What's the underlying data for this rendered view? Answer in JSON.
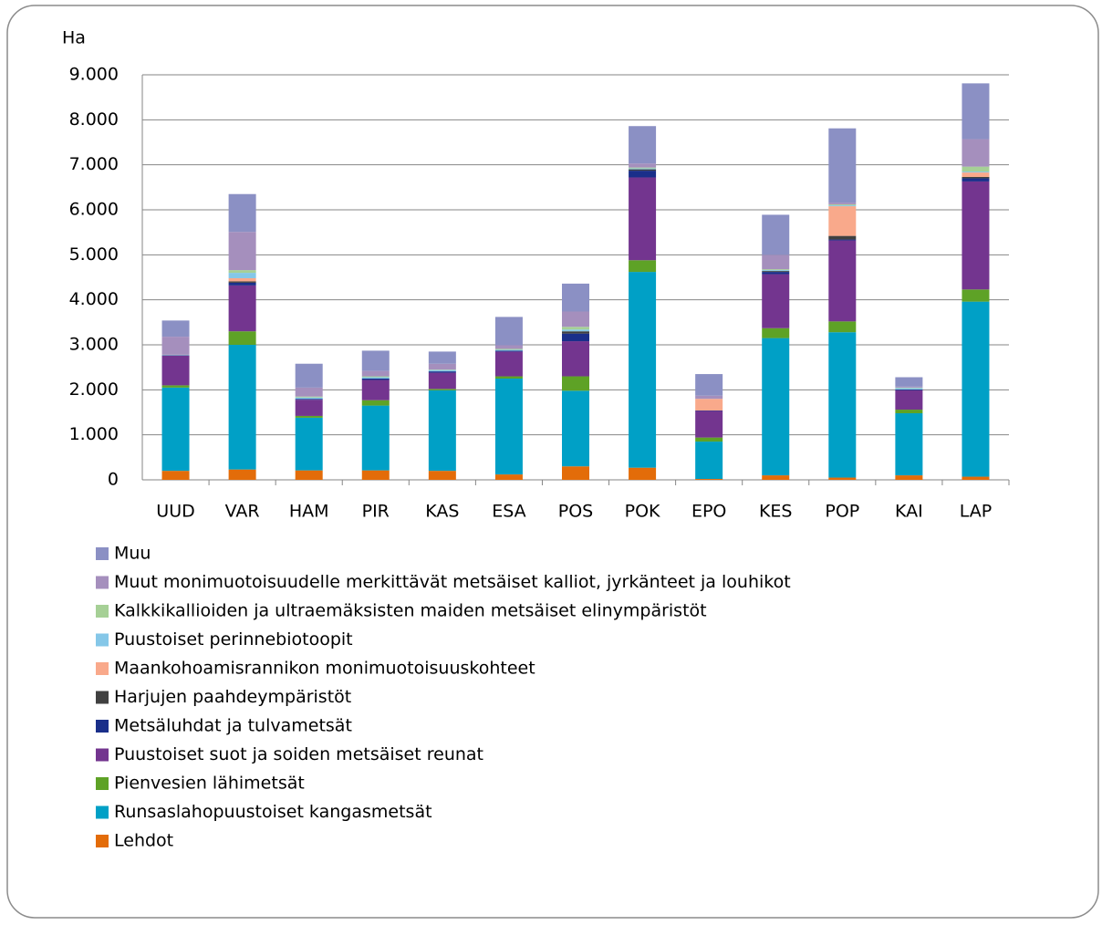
{
  "chart_data": {
    "type": "stacked-bar",
    "y_label": "Ha",
    "categories": [
      "UUD",
      "VAR",
      "HAM",
      "PIR",
      "KAS",
      "ESA",
      "POS",
      "POK",
      "EPO",
      "KES",
      "POP",
      "KAI",
      "LAP"
    ],
    "series": [
      {
        "name": "Lehdot",
        "color": "#e36c09",
        "values": [
          200,
          230,
          210,
          210,
          200,
          120,
          300,
          270,
          20,
          100,
          50,
          100,
          70
        ]
      },
      {
        "name": "Runsaslahopuustoiset kangasmetsät",
        "color": "#00a0c6",
        "values": [
          1850,
          2770,
          1170,
          1440,
          1790,
          2130,
          1680,
          4350,
          830,
          3050,
          3230,
          1380,
          3890
        ]
      },
      {
        "name": "Pienvesien lähimetsät",
        "color": "#5ea226",
        "values": [
          50,
          300,
          40,
          120,
          30,
          50,
          320,
          260,
          90,
          220,
          240,
          80,
          270
        ]
      },
      {
        "name": "Puustoiset suot ja soiden metsäiset reunat",
        "color": "#73358f",
        "values": [
          660,
          1020,
          360,
          450,
          360,
          550,
          780,
          1840,
          590,
          1200,
          1800,
          430,
          2400
        ]
      },
      {
        "name": "Metsäluhdat ja tulvametsät",
        "color": "#1a2f8a",
        "values": [
          10,
          60,
          20,
          30,
          30,
          20,
          170,
          150,
          10,
          50,
          20,
          20,
          70
        ]
      },
      {
        "name": "Harjujen paahdeympäristöt",
        "color": "#404040",
        "values": [
          0,
          30,
          0,
          0,
          0,
          0,
          50,
          30,
          0,
          20,
          80,
          0,
          30
        ]
      },
      {
        "name": "Maankohoamisrannikon monimuotoisuuskohteet",
        "color": "#f9a98b",
        "values": [
          0,
          70,
          0,
          0,
          0,
          0,
          0,
          0,
          260,
          0,
          660,
          0,
          100
        ]
      },
      {
        "name": "Puustoiset perinnebiotoopit",
        "color": "#85c7e8",
        "values": [
          5,
          120,
          30,
          30,
          30,
          20,
          40,
          20,
          0,
          20,
          20,
          30,
          20
        ]
      },
      {
        "name": "Kalkkikallioiden ja ultraemäksisten maiden metsäiset elinympäristöt",
        "color": "#a6d096",
        "values": [
          5,
          60,
          20,
          20,
          10,
          20,
          60,
          20,
          0,
          20,
          20,
          10,
          110
        ]
      },
      {
        "name": "Muut monimuotoisuudelle merkittävät metsäiset kalliot, jyrkänteet ja louhikot",
        "color": "#a58fbd",
        "values": [
          400,
          850,
          200,
          120,
          130,
          80,
          340,
          90,
          70,
          320,
          40,
          20,
          610
        ]
      },
      {
        "name": "Muu",
        "color": "#8b90c4",
        "values": [
          360,
          840,
          530,
          450,
          270,
          630,
          620,
          830,
          480,
          890,
          1650,
          210,
          1240
        ]
      }
    ],
    "ylim": [
      0,
      9000
    ],
    "yticks": [
      0,
      {
        "value": 1000,
        "label": "1.000"
      },
      {
        "value": 2000,
        "label": "2.000"
      },
      {
        "value": 3000,
        "label": "3.000"
      },
      {
        "value": 4000,
        "label": "4.000"
      },
      {
        "value": 5000,
        "label": "5.000"
      },
      {
        "value": 6000,
        "label": "6.000"
      },
      {
        "value": 7000,
        "label": "7.000"
      },
      {
        "value": 8000,
        "label": "8.000"
      },
      {
        "value": 9000,
        "label": "9.000"
      }
    ],
    "grid": true,
    "legend": "bottom"
  }
}
